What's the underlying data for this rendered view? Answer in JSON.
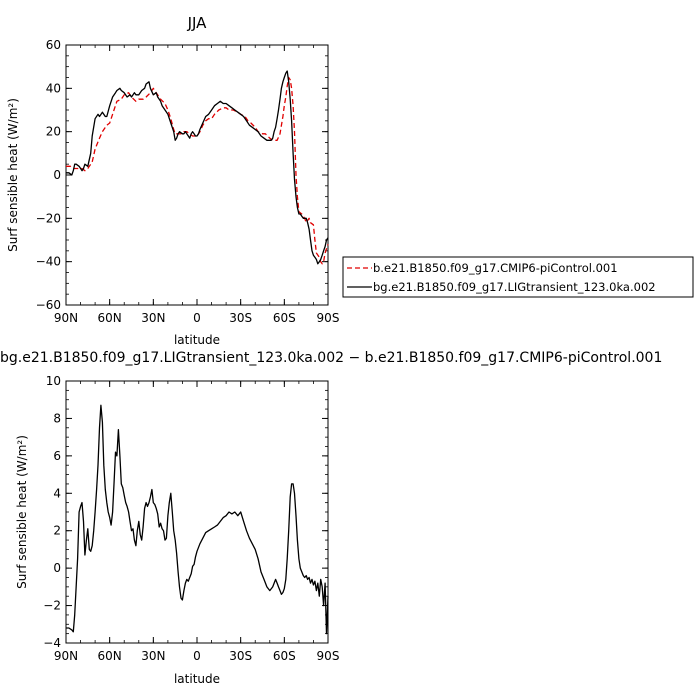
{
  "chart_data": [
    {
      "type": "line",
      "title": "JJA",
      "xlabel": "latitude",
      "ylabel": "Surf sensible heat (W/m²)",
      "xlim": [
        90,
        -90
      ],
      "ylim": [
        -60,
        60
      ],
      "x_ticks": [
        90,
        60,
        30,
        0,
        -30,
        -60,
        -90
      ],
      "x_tick_labels": [
        "90N",
        "60N",
        "30N",
        "0",
        "30S",
        "60S",
        "90S"
      ],
      "y_ticks": [
        -60,
        -40,
        -20,
        0,
        20,
        40,
        60
      ],
      "y_tick_labels": [
        "−60",
        "−40",
        "−20",
        "0",
        "20",
        "40",
        "60"
      ],
      "legend_position": "outside-right",
      "series": [
        {
          "name": "b.e21.B1850.f09_g17.CMIP6-piControl.001",
          "color": "#e00000",
          "dash": "dashed",
          "x": [
            90,
            87,
            85,
            83,
            81,
            79,
            77,
            75,
            72,
            70,
            67,
            65,
            62,
            60,
            57,
            55,
            52,
            50,
            47,
            45,
            42,
            40,
            37,
            35,
            32,
            30,
            28,
            25,
            22,
            20,
            18,
            16,
            15,
            13,
            11,
            9,
            7,
            5,
            3,
            1,
            0,
            -2,
            -4,
            -6,
            -8,
            -10,
            -12,
            -15,
            -18,
            -20,
            -22,
            -25,
            -28,
            -30,
            -33,
            -35,
            -37,
            -40,
            -42,
            -45,
            -47,
            -50,
            -52,
            -55,
            -57,
            -59,
            -60,
            -61,
            -62,
            -63,
            -64,
            -65,
            -66,
            -67,
            -68,
            -69,
            -70,
            -72,
            -74,
            -75,
            -77,
            -78,
            -80,
            -81,
            -82,
            -84,
            -85,
            -86,
            -87,
            -88,
            -89,
            -90
          ],
          "y": [
            4,
            4,
            3,
            3,
            3,
            3,
            2,
            3,
            6,
            12,
            17,
            20,
            23,
            24,
            30,
            34,
            35,
            37,
            38,
            36,
            34,
            35,
            35,
            36,
            38,
            40,
            38,
            35,
            33,
            30,
            26,
            21,
            19,
            19,
            19,
            20,
            20,
            19,
            18,
            18,
            18,
            20,
            23,
            25,
            26,
            26,
            28,
            30,
            31,
            31,
            30,
            30,
            29,
            28,
            27,
            25,
            24,
            22,
            20,
            19,
            19,
            17,
            16,
            16,
            19,
            27,
            32,
            36,
            41,
            45,
            44,
            40,
            32,
            20,
            0,
            -10,
            -17,
            -18,
            -20,
            -22,
            -20,
            -22,
            -23,
            -30,
            -36,
            -38,
            -40,
            -41,
            -40,
            -36,
            -34,
            -32
          ]
        },
        {
          "name": "bg.e21.B1850.f09_g17.LIGtransient_123.0ka.002",
          "color": "#000000",
          "dash": "solid",
          "x": [
            90,
            88,
            86,
            85,
            84,
            83,
            81,
            80,
            79,
            78,
            77,
            75,
            73,
            72,
            70,
            68,
            67,
            65,
            63,
            62,
            60,
            58,
            56,
            55,
            53,
            52,
            50,
            48,
            46,
            45,
            43,
            42,
            40,
            38,
            36,
            35,
            33,
            32,
            30,
            28,
            27,
            25,
            24,
            22,
            20,
            18,
            16,
            15,
            14,
            13,
            12,
            10,
            9,
            8,
            7,
            6,
            5,
            4,
            3,
            2,
            1,
            0,
            -1,
            -2,
            -4,
            -6,
            -8,
            -10,
            -12,
            -14,
            -16,
            -18,
            -20,
            -22,
            -24,
            -26,
            -28,
            -30,
            -32,
            -34,
            -36,
            -38,
            -40,
            -42,
            -44,
            -46,
            -48,
            -50,
            -51,
            -52,
            -53,
            -54,
            -55,
            -56,
            -57,
            -58,
            -59,
            -60,
            -61,
            -62,
            -63,
            -64,
            -65,
            -66,
            -67,
            -68,
            -69,
            -70,
            -71,
            -72,
            -73,
            -74,
            -75,
            -76,
            -77,
            -78,
            -79,
            -80,
            -81,
            -82,
            -83,
            -84,
            -85,
            -86,
            -87,
            -88,
            -89,
            -90
          ],
          "y": [
            1,
            1,
            0,
            2,
            5,
            5,
            4,
            3,
            2,
            3,
            5,
            4,
            10,
            18,
            26,
            28,
            27,
            29,
            27,
            27,
            32,
            36,
            38,
            39,
            40,
            39,
            38,
            36,
            37,
            36,
            38,
            37,
            37,
            39,
            40,
            42,
            43,
            40,
            37,
            38,
            36,
            34,
            32,
            30,
            28,
            24,
            20,
            16,
            17,
            19,
            20,
            19,
            19,
            20,
            19,
            18,
            17,
            19,
            20,
            19,
            18,
            18,
            19,
            21,
            24,
            27,
            28,
            30,
            32,
            33,
            34,
            33,
            33,
            32,
            31,
            30,
            29,
            28,
            27,
            25,
            23,
            22,
            21,
            20,
            18,
            17,
            16,
            16,
            16,
            17,
            20,
            22,
            26,
            30,
            35,
            40,
            43,
            45,
            47,
            48,
            43,
            35,
            25,
            10,
            -2,
            -10,
            -15,
            -18,
            -18,
            -19,
            -20,
            -20,
            -20,
            -22,
            -25,
            -30,
            -35,
            -37,
            -38,
            -39,
            -41,
            -40,
            -39,
            -37,
            -35,
            -33,
            -30,
            -29
          ]
        }
      ]
    },
    {
      "type": "line",
      "title": "bg.e21.B1850.f09_g17.LIGtransient_123.0ka.002  −  b.e21.B1850.f09_g17.CMIP6-piControl.001",
      "xlabel": "latitude",
      "ylabel": "Surf sensible heat (W/m²)",
      "xlim": [
        90,
        -90
      ],
      "ylim": [
        -4,
        10
      ],
      "x_ticks": [
        90,
        60,
        30,
        0,
        -30,
        -60,
        -90
      ],
      "x_tick_labels": [
        "90N",
        "60N",
        "30N",
        "0",
        "30S",
        "60S",
        "90S"
      ],
      "y_ticks": [
        -4,
        -2,
        0,
        2,
        4,
        6,
        8,
        10
      ],
      "y_tick_labels": [
        "−4",
        "−2",
        "0",
        "2",
        "4",
        "6",
        "8",
        "10"
      ],
      "series": [
        {
          "name": "",
          "color": "#000000",
          "dash": "solid",
          "x": [
            90,
            88,
            86,
            85,
            84,
            82,
            81,
            80,
            79,
            78,
            77,
            76,
            75,
            74,
            73,
            72,
            71,
            70,
            69,
            68,
            67,
            66,
            65,
            64,
            63,
            62,
            61,
            60,
            59,
            58,
            57,
            56,
            55,
            54,
            53,
            52,
            51,
            50,
            49,
            48,
            47,
            46,
            45,
            44,
            43,
            42,
            41,
            40,
            39,
            38,
            37,
            36,
            35,
            34,
            33,
            32,
            31,
            30,
            29,
            28,
            27,
            26,
            25,
            24,
            23,
            22,
            21,
            20,
            19,
            18,
            17,
            16,
            15,
            14,
            13,
            12,
            11,
            10,
            9,
            8,
            7,
            6,
            5,
            4,
            3,
            2,
            1,
            0,
            -2,
            -4,
            -6,
            -8,
            -10,
            -12,
            -14,
            -16,
            -18,
            -20,
            -22,
            -24,
            -26,
            -28,
            -30,
            -32,
            -34,
            -36,
            -38,
            -40,
            -42,
            -44,
            -46,
            -48,
            -50,
            -52,
            -54,
            -55,
            -56,
            -57,
            -58,
            -59,
            -60,
            -61,
            -62,
            -63,
            -64,
            -65,
            -66,
            -67,
            -68,
            -69,
            -70,
            -71,
            -72,
            -73,
            -74,
            -75,
            -76,
            -77,
            -78,
            -79,
            -80,
            -81,
            -82,
            -83,
            -84,
            -85,
            -86,
            -87,
            -88,
            -89,
            -90
          ],
          "y": [
            -3.2,
            -3.2,
            -3.3,
            -3.4,
            -2.5,
            0.5,
            3.0,
            3.3,
            3.5,
            2.5,
            0.7,
            1.5,
            2.1,
            1.0,
            0.9,
            1.2,
            2.0,
            3.0,
            4.2,
            5.5,
            7.5,
            8.7,
            7.8,
            5.5,
            4.2,
            3.5,
            3.0,
            2.7,
            2.3,
            3.0,
            4.5,
            6.2,
            6.0,
            7.4,
            6.0,
            4.5,
            4.3,
            3.9,
            3.5,
            3.3,
            3.0,
            2.5,
            2.0,
            2.1,
            1.5,
            1.2,
            2.0,
            2.5,
            1.8,
            1.5,
            2.2,
            3.2,
            3.5,
            3.3,
            3.5,
            3.8,
            4.2,
            3.5,
            3.4,
            3.2,
            2.9,
            2.2,
            2.4,
            2.1,
            2.0,
            1.5,
            1.6,
            2.8,
            3.5,
            4.0,
            3.0,
            2.0,
            1.5,
            0.8,
            -0.2,
            -1.0,
            -1.6,
            -1.7,
            -1.2,
            -0.8,
            -0.6,
            -0.7,
            -0.5,
            -0.3,
            0.1,
            0.2,
            0.6,
            0.9,
            1.3,
            1.6,
            1.9,
            2.0,
            2.1,
            2.2,
            2.3,
            2.5,
            2.7,
            2.8,
            3.0,
            2.9,
            3.0,
            2.8,
            3.0,
            2.5,
            2.0,
            1.6,
            1.3,
            1.0,
            0.5,
            -0.2,
            -0.6,
            -1.0,
            -1.2,
            -1.0,
            -0.6,
            -0.8,
            -1.0,
            -1.2,
            -1.4,
            -1.3,
            -1.1,
            -0.6,
            0.5,
            2.0,
            3.8,
            4.5,
            4.5,
            4.0,
            2.8,
            1.5,
            0.5,
            0.0,
            -0.2,
            -0.4,
            -0.5,
            -0.4,
            -0.6,
            -0.5,
            -0.8,
            -0.6,
            -0.9,
            -0.7,
            -1.2,
            -0.8,
            -1.5,
            -0.6,
            -1.0,
            -2.0,
            -0.8,
            -3.5,
            -1.5
          ]
        }
      ]
    }
  ]
}
